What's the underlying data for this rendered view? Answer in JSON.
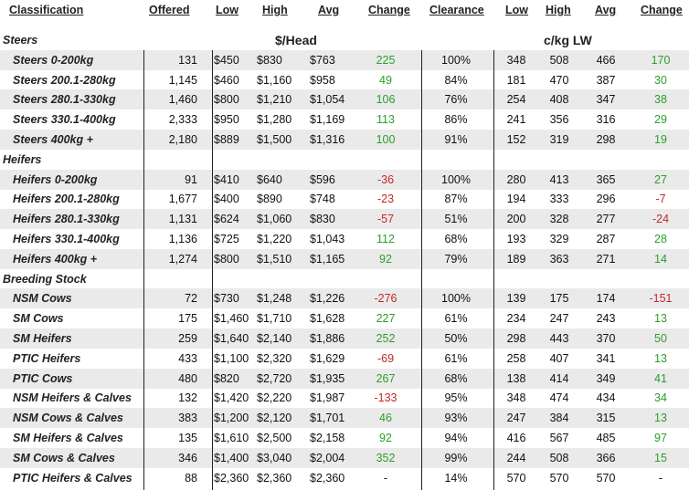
{
  "headers": {
    "classification": "Classification",
    "offered": "Offered",
    "low": "Low",
    "high": "High",
    "avg": "Avg",
    "change": "Change",
    "clearance": "Clearance",
    "low2": "Low",
    "high2": "High",
    "avg2": "Avg",
    "change2": "Change"
  },
  "units": {
    "head": "$/Head",
    "lw": "c/kg LW"
  },
  "sections": [
    {
      "title": "Steers",
      "rows": [
        {
          "name": "Steers 0-200kg",
          "offered": "131",
          "low": "$450",
          "high": "$830",
          "avg": "$763",
          "change": "225",
          "clearance": "100%",
          "low2": "348",
          "high2": "508",
          "avg2": "466",
          "change2": "170"
        },
        {
          "name": "Steers 200.1-280kg",
          "offered": "1,145",
          "low": "$460",
          "high": "$1,160",
          "avg": "$958",
          "change": "49",
          "clearance": "84%",
          "low2": "181",
          "high2": "470",
          "avg2": "387",
          "change2": "30"
        },
        {
          "name": "Steers 280.1-330kg",
          "offered": "1,460",
          "low": "$800",
          "high": "$1,210",
          "avg": "$1,054",
          "change": "106",
          "clearance": "76%",
          "low2": "254",
          "high2": "408",
          "avg2": "347",
          "change2": "38"
        },
        {
          "name": "Steers 330.1-400kg",
          "offered": "2,333",
          "low": "$950",
          "high": "$1,280",
          "avg": "$1,169",
          "change": "113",
          "clearance": "86%",
          "low2": "241",
          "high2": "356",
          "avg2": "316",
          "change2": "29"
        },
        {
          "name": "Steers 400kg +",
          "offered": "2,180",
          "low": "$889",
          "high": "$1,500",
          "avg": "$1,316",
          "change": "100",
          "clearance": "91%",
          "low2": "152",
          "high2": "319",
          "avg2": "298",
          "change2": "19"
        }
      ]
    },
    {
      "title": "Heifers",
      "rows": [
        {
          "name": "Heifers 0-200kg",
          "offered": "91",
          "low": "$410",
          "high": "$640",
          "avg": "$596",
          "change": "-36",
          "clearance": "100%",
          "low2": "280",
          "high2": "413",
          "avg2": "365",
          "change2": "27"
        },
        {
          "name": "Heifers 200.1-280kg",
          "offered": "1,677",
          "low": "$400",
          "high": "$890",
          "avg": "$748",
          "change": "-23",
          "clearance": "87%",
          "low2": "194",
          "high2": "333",
          "avg2": "296",
          "change2": "-7"
        },
        {
          "name": "Heifers 280.1-330kg",
          "offered": "1,131",
          "low": "$624",
          "high": "$1,060",
          "avg": "$830",
          "change": "-57",
          "clearance": "51%",
          "low2": "200",
          "high2": "328",
          "avg2": "277",
          "change2": "-24"
        },
        {
          "name": "Heifers 330.1-400kg",
          "offered": "1,136",
          "low": "$725",
          "high": "$1,220",
          "avg": "$1,043",
          "change": "112",
          "clearance": "68%",
          "low2": "193",
          "high2": "329",
          "avg2": "287",
          "change2": "28"
        },
        {
          "name": "Heifers 400kg +",
          "offered": "1,274",
          "low": "$800",
          "high": "$1,510",
          "avg": "$1,165",
          "change": "92",
          "clearance": "79%",
          "low2": "189",
          "high2": "363",
          "avg2": "271",
          "change2": "14"
        }
      ]
    },
    {
      "title": "Breeding Stock",
      "rows": [
        {
          "name": "NSM Cows",
          "offered": "72",
          "low": "$730",
          "high": "$1,248",
          "avg": "$1,226",
          "change": "-276",
          "clearance": "100%",
          "low2": "139",
          "high2": "175",
          "avg2": "174",
          "change2": "-151"
        },
        {
          "name": "SM Cows",
          "offered": "175",
          "low": "$1,460",
          "high": "$1,710",
          "avg": "$1,628",
          "change": "227",
          "clearance": "61%",
          "low2": "234",
          "high2": "247",
          "avg2": "243",
          "change2": "13"
        },
        {
          "name": "SM Heifers",
          "offered": "259",
          "low": "$1,640",
          "high": "$2,140",
          "avg": "$1,886",
          "change": "252",
          "clearance": "50%",
          "low2": "298",
          "high2": "443",
          "avg2": "370",
          "change2": "50"
        },
        {
          "name": "PTIC Heifers",
          "offered": "433",
          "low": "$1,100",
          "high": "$2,320",
          "avg": "$1,629",
          "change": "-69",
          "clearance": "61%",
          "low2": "258",
          "high2": "407",
          "avg2": "341",
          "change2": "13"
        },
        {
          "name": "PTIC Cows",
          "offered": "480",
          "low": "$820",
          "high": "$2,720",
          "avg": "$1,935",
          "change": "267",
          "clearance": "68%",
          "low2": "138",
          "high2": "414",
          "avg2": "349",
          "change2": "41"
        },
        {
          "name": "NSM Heifers & Calves",
          "offered": "132",
          "low": "$1,420",
          "high": "$2,220",
          "avg": "$1,987",
          "change": "-133",
          "clearance": "95%",
          "low2": "348",
          "high2": "474",
          "avg2": "434",
          "change2": "34"
        },
        {
          "name": "NSM Cows & Calves",
          "offered": "383",
          "low": "$1,200",
          "high": "$2,120",
          "avg": "$1,701",
          "change": "46",
          "clearance": "93%",
          "low2": "247",
          "high2": "384",
          "avg2": "315",
          "change2": "13"
        },
        {
          "name": "SM Heifers & Calves",
          "offered": "135",
          "low": "$1,610",
          "high": "$2,500",
          "avg": "$2,158",
          "change": "92",
          "clearance": "94%",
          "low2": "416",
          "high2": "567",
          "avg2": "485",
          "change2": "97"
        },
        {
          "name": "SM Cows & Calves",
          "offered": "346",
          "low": "$1,400",
          "high": "$3,040",
          "avg": "$2,004",
          "change": "352",
          "clearance": "99%",
          "low2": "244",
          "high2": "508",
          "avg2": "366",
          "change2": "15"
        },
        {
          "name": "PTIC Heifers & Calves",
          "offered": "88",
          "low": "$2,360",
          "high": "$2,360",
          "avg": "$2,360",
          "change": "-",
          "clearance": "14%",
          "low2": "570",
          "high2": "570",
          "avg2": "570",
          "change2": "-"
        }
      ]
    }
  ]
}
